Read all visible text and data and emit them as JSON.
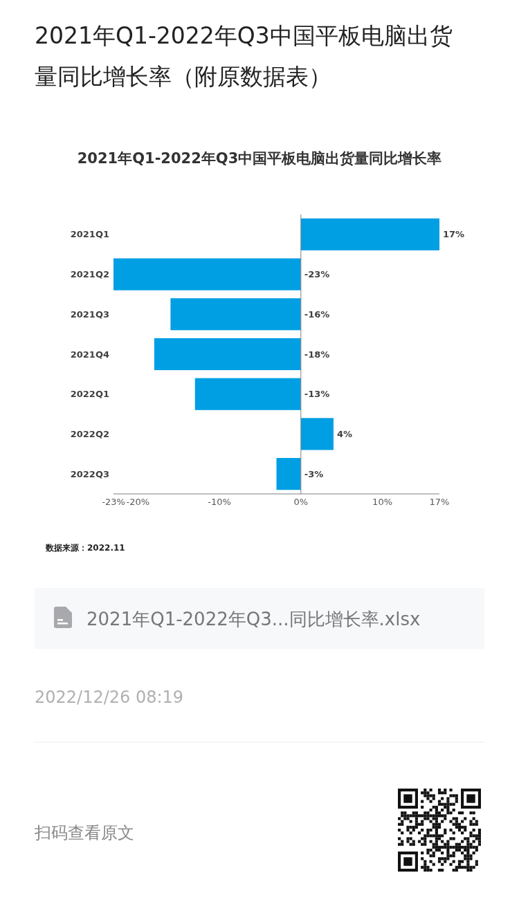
{
  "chart_data": {
    "type": "bar",
    "orientation": "horizontal",
    "title": "2021年Q1-2022年Q3中国平板电脑出货量同比增长率（附原数据表）",
    "subtitle": "2021年Q1-2022年Q3中国平板电脑出货量同比增长率",
    "categories": [
      "2021Q1",
      "2021Q2",
      "2021Q3",
      "2021Q4",
      "2022Q1",
      "2022Q2",
      "2022Q3"
    ],
    "values": [
      17,
      -23,
      -16,
      -18,
      -13,
      4,
      -3
    ],
    "color": "#009fe3",
    "value_labels": [
      "17%",
      "-23%",
      "-16%",
      "-18%",
      "-13%",
      "4%",
      "-3%"
    ],
    "xlim": [
      -23,
      17
    ],
    "xticks": [
      {
        "value": -23,
        "label": "-23%"
      },
      {
        "value": -20,
        "label": "-20%"
      },
      {
        "value": -10,
        "label": "-10%"
      },
      {
        "value": 0,
        "label": "0%"
      },
      {
        "value": 10,
        "label": "10%"
      },
      {
        "value": 17,
        "label": "17%"
      }
    ],
    "annotations": [
      "数据来源：2022.11",
      "2021年Q1-2022年Q3...同比增长率.xlsx",
      "2022/12/26 08:19",
      "扫码查看原文"
    ]
  }
}
